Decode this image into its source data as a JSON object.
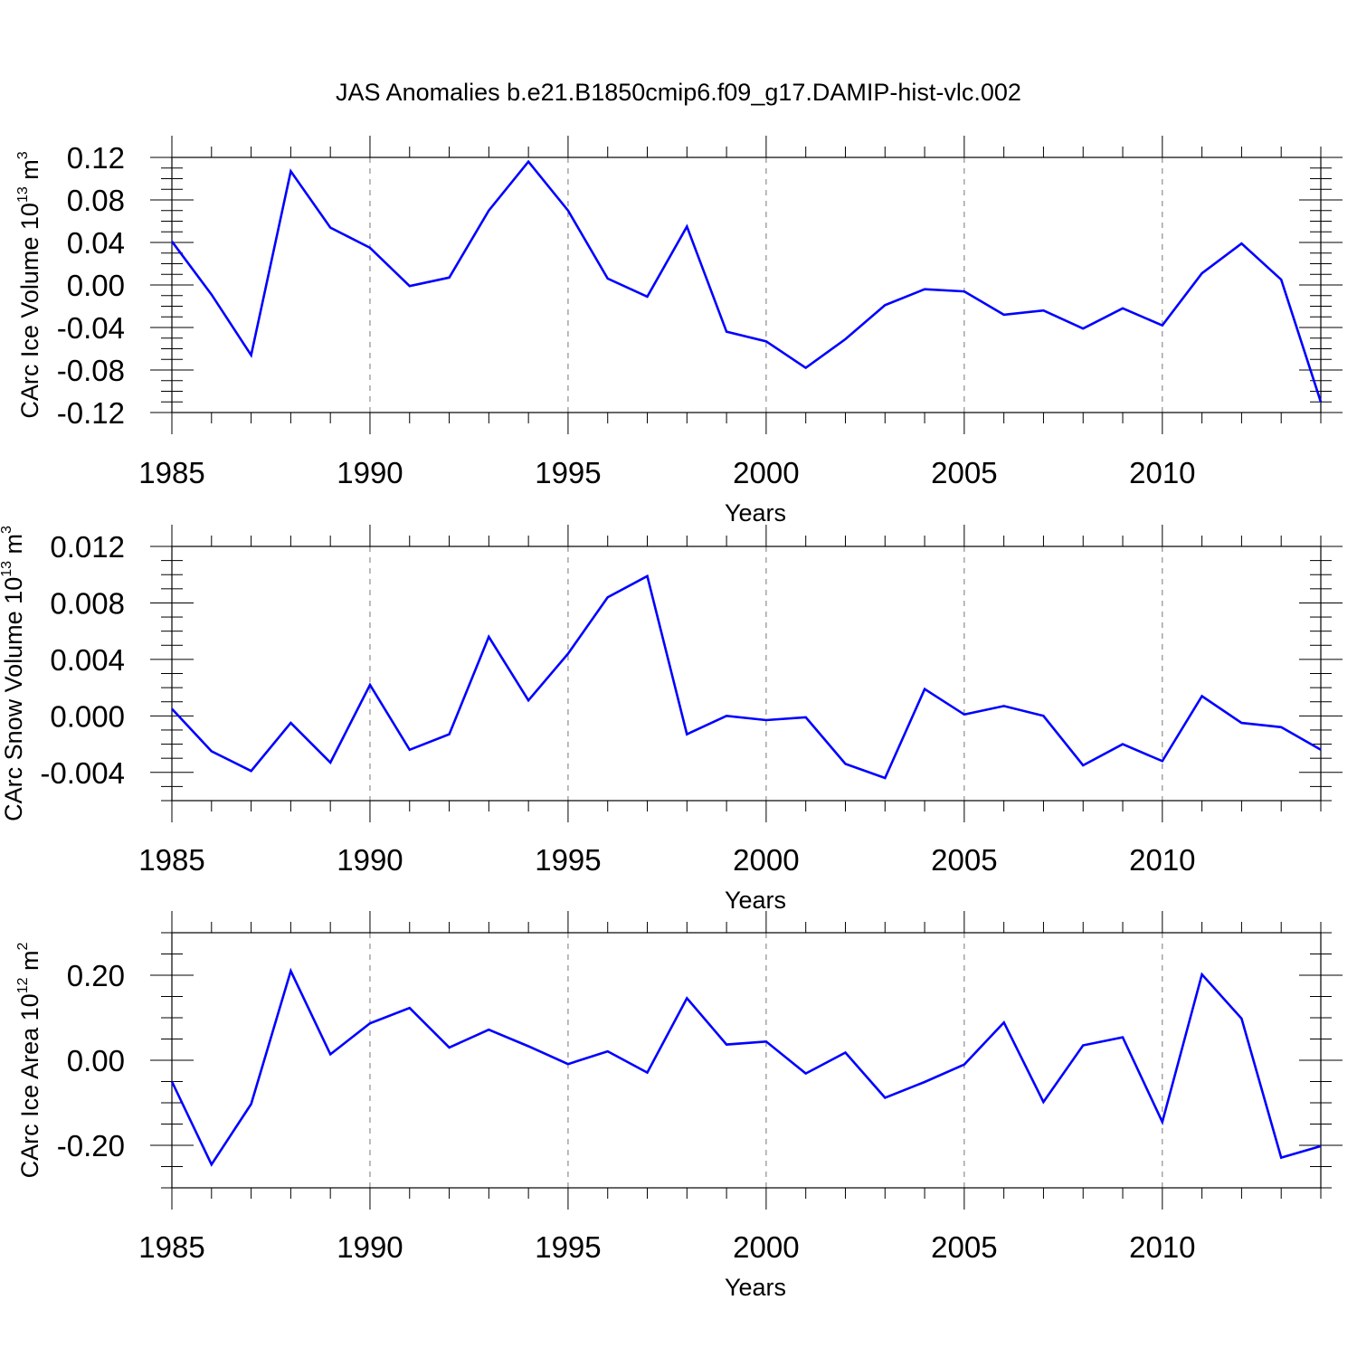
{
  "title": "JAS Anomalies b.e21.B1850cmip6.f09_g17.DAMIP-hist-vlc.002",
  "colors": {
    "series": "#0000ff",
    "axes": "#000000",
    "grid": "#777777"
  },
  "chart_data": [
    {
      "type": "line",
      "name": "ice-volume",
      "ylabel": "CArc Ice Volume 10",
      "ylabel_sup": "13",
      "ylabel_unit": " m",
      "ylabel_unit_sup": "3",
      "xlabel": "Years",
      "xlim": [
        1985,
        2014
      ],
      "ylim": [
        -0.12,
        0.12
      ],
      "yticks": [
        "0.12",
        "0.08",
        "0.04",
        "0.00",
        "-0.04",
        "-0.08",
        "-0.12"
      ],
      "yticks_values": [
        0.12,
        0.08,
        0.04,
        0.0,
        -0.04,
        -0.08,
        -0.12
      ],
      "xticks": [
        "1985",
        "1990",
        "1995",
        "2000",
        "2005",
        "2010"
      ],
      "x": [
        1985,
        1986,
        1987,
        1988,
        1989,
        1990,
        1991,
        1992,
        1993,
        1994,
        1995,
        1996,
        1997,
        1998,
        1999,
        2000,
        2001,
        2002,
        2003,
        2004,
        2005,
        2006,
        2007,
        2008,
        2009,
        2010,
        2011,
        2012,
        2013,
        2014
      ],
      "values": [
        0.041,
        -0.009,
        -0.066,
        0.107,
        0.054,
        0.035,
        -0.001,
        0.007,
        0.07,
        0.116,
        0.07,
        0.006,
        -0.011,
        0.055,
        -0.044,
        -0.053,
        -0.078,
        -0.051,
        -0.019,
        -0.004,
        -0.006,
        -0.028,
        -0.024,
        -0.041,
        -0.022,
        -0.038,
        0.011,
        0.039,
        0.005,
        -0.11
      ]
    },
    {
      "type": "line",
      "name": "snow-volume",
      "ylabel": "CArc Snow Volume 10",
      "ylabel_sup": "13",
      "ylabel_unit": " m",
      "ylabel_unit_sup": "3",
      "xlabel": "Years",
      "xlim": [
        1985,
        2014
      ],
      "ylim": [
        -0.006,
        0.012
      ],
      "yticks": [
        "0.012",
        "0.008",
        "0.004",
        "0.000",
        "-0.004"
      ],
      "yticks_values": [
        0.012,
        0.008,
        0.004,
        0.0,
        -0.004
      ],
      "xticks": [
        "1985",
        "1990",
        "1995",
        "2000",
        "2005",
        "2010"
      ],
      "x": [
        1985,
        1986,
        1987,
        1988,
        1989,
        1990,
        1991,
        1992,
        1993,
        1994,
        1995,
        1996,
        1997,
        1998,
        1999,
        2000,
        2001,
        2002,
        2003,
        2004,
        2005,
        2006,
        2007,
        2008,
        2009,
        2010,
        2011,
        2012,
        2013,
        2014
      ],
      "values": [
        0.0005,
        -0.0025,
        -0.0039,
        -0.0005,
        -0.0033,
        0.0022,
        -0.0024,
        -0.0013,
        0.0056,
        0.0011,
        0.0044,
        0.0084,
        0.0099,
        -0.0013,
        0.0,
        -0.0003,
        -0.0001,
        -0.0034,
        -0.0044,
        0.0019,
        0.0001,
        0.0007,
        0.0,
        -0.0035,
        -0.002,
        -0.0032,
        0.0014,
        -0.0005,
        -0.0008,
        -0.0024
      ]
    },
    {
      "type": "line",
      "name": "ice-area",
      "ylabel": "CArc Ice Area 10",
      "ylabel_sup": "12",
      "ylabel_unit": " m",
      "ylabel_unit_sup": "2",
      "xlabel": "Years",
      "xlim": [
        1985,
        2014
      ],
      "ylim": [
        -0.3,
        0.3
      ],
      "yticks": [
        "0.20",
        "0.00",
        "-0.20"
      ],
      "yticks_values": [
        0.2,
        0.0,
        -0.2
      ],
      "xticks": [
        "1985",
        "1990",
        "1995",
        "2000",
        "2005",
        "2010"
      ],
      "x": [
        1985,
        1986,
        1987,
        1988,
        1989,
        1990,
        1991,
        1992,
        1993,
        1994,
        1995,
        1996,
        1997,
        1998,
        1999,
        2000,
        2001,
        2002,
        2003,
        2004,
        2005,
        2006,
        2007,
        2008,
        2009,
        2010,
        2011,
        2012,
        2013,
        2014
      ],
      "values": [
        -0.05,
        -0.245,
        -0.103,
        0.21,
        0.014,
        0.087,
        0.123,
        0.03,
        0.072,
        0.033,
        -0.009,
        0.021,
        -0.029,
        0.146,
        0.037,
        0.044,
        -0.031,
        0.018,
        -0.088,
        -0.051,
        -0.01,
        0.089,
        -0.098,
        0.035,
        0.054,
        -0.145,
        0.202,
        0.098,
        -0.229,
        -0.202
      ]
    }
  ]
}
